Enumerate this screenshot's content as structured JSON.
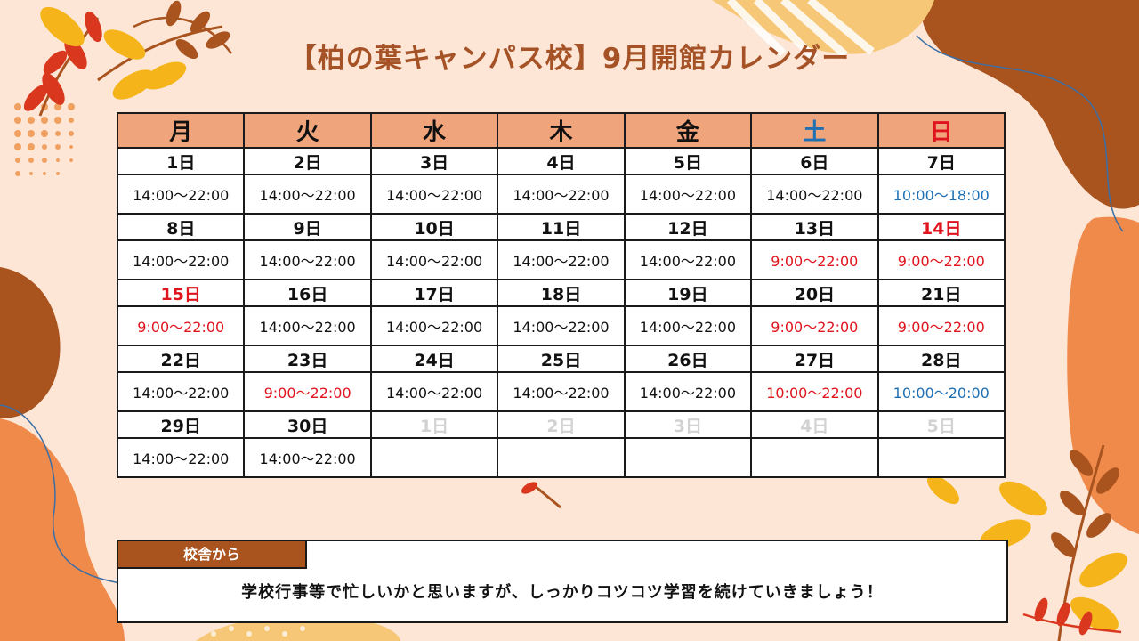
{
  "title": "【柏の葉キャンパス校】9月開館カレンダー",
  "weekdays": [
    {
      "label": "月",
      "color": "#111111"
    },
    {
      "label": "火",
      "color": "#111111"
    },
    {
      "label": "水",
      "color": "#111111"
    },
    {
      "label": "木",
      "color": "#111111"
    },
    {
      "label": "金",
      "color": "#111111"
    },
    {
      "label": "土",
      "color": "#1f6fb3"
    },
    {
      "label": "日",
      "color": "#e0141e"
    }
  ],
  "weeks": [
    [
      {
        "day": "1日",
        "hours": "14:00～22:00"
      },
      {
        "day": "2日",
        "hours": "14:00～22:00"
      },
      {
        "day": "3日",
        "hours": "14:00～22:00"
      },
      {
        "day": "4日",
        "hours": "14:00～22:00"
      },
      {
        "day": "5日",
        "hours": "14:00～22:00"
      },
      {
        "day": "6日",
        "hours": "14:00～22:00"
      },
      {
        "day": "7日",
        "hours": "10:00～18:00",
        "hours_style": "blue"
      }
    ],
    [
      {
        "day": "8日",
        "hours": "14:00～22:00"
      },
      {
        "day": "9日",
        "hours": "14:00～22:00"
      },
      {
        "day": "10日",
        "hours": "14:00～22:00"
      },
      {
        "day": "11日",
        "hours": "14:00～22:00"
      },
      {
        "day": "12日",
        "hours": "14:00～22:00"
      },
      {
        "day": "13日",
        "hours": "9:00～22:00",
        "hours_style": "red"
      },
      {
        "day": "14日",
        "day_style": "red",
        "hours": "9:00～22:00",
        "hours_style": "red"
      }
    ],
    [
      {
        "day": "15日",
        "day_style": "red",
        "hours": "9:00～22:00",
        "hours_style": "red"
      },
      {
        "day": "16日",
        "hours": "14:00～22:00"
      },
      {
        "day": "17日",
        "hours": "14:00～22:00"
      },
      {
        "day": "18日",
        "hours": "14:00～22:00"
      },
      {
        "day": "19日",
        "hours": "14:00～22:00"
      },
      {
        "day": "20日",
        "hours": "9:00～22:00",
        "hours_style": "red"
      },
      {
        "day": "21日",
        "hours": "9:00～22:00",
        "hours_style": "red"
      }
    ],
    [
      {
        "day": "22日",
        "hours": "14:00～22:00"
      },
      {
        "day": "23日",
        "hours": "9:00～22:00",
        "hours_style": "red"
      },
      {
        "day": "24日",
        "hours": "14:00～22:00"
      },
      {
        "day": "25日",
        "hours": "14:00～22:00"
      },
      {
        "day": "26日",
        "hours": "14:00～22:00"
      },
      {
        "day": "27日",
        "hours": "10:00～22:00",
        "hours_style": "red"
      },
      {
        "day": "28日",
        "hours": "10:00～20:00",
        "hours_style": "blue"
      }
    ],
    [
      {
        "day": "29日",
        "hours": "14:00～22:00"
      },
      {
        "day": "30日",
        "hours": "14:00～22:00"
      },
      {
        "day": "1日",
        "day_style": "gray",
        "hours": ""
      },
      {
        "day": "2日",
        "day_style": "gray",
        "hours": ""
      },
      {
        "day": "3日",
        "day_style": "gray",
        "hours": ""
      },
      {
        "day": "4日",
        "day_style": "gray",
        "hours": ""
      },
      {
        "day": "5日",
        "day_style": "gray",
        "hours": ""
      }
    ]
  ],
  "message": {
    "tab": "校舎から",
    "text": "学校行事等で忙しいかと思いますが、しっかりコツコツ学習を続けていきましょう！"
  },
  "colors": {
    "header_bg": "#f0a47c",
    "title": "#a65227",
    "saturday": "#1f6fb3",
    "sunday_holiday": "#e0141e",
    "message_tab": "#a9531f"
  }
}
